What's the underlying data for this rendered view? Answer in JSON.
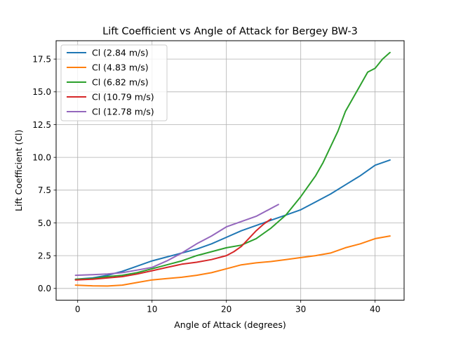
{
  "chart_data": {
    "type": "line",
    "title": "Lift Coefficient vs Angle of Attack for Bergey BW-3",
    "xlabel": "Angle of Attack (degrees)",
    "ylabel": "Lift Coefficient (Cl)",
    "xlim": [
      -2.9,
      43.9
    ],
    "ylim": [
      -0.9,
      18.9
    ],
    "xticks": [
      0,
      10,
      20,
      30,
      40
    ],
    "xtick_labels": [
      "0",
      "10",
      "20",
      "30",
      "40"
    ],
    "yticks": [
      0,
      2.5,
      5,
      7.5,
      10,
      12.5,
      15,
      17.5
    ],
    "ytick_labels": [
      "0.0",
      "2.5",
      "5.0",
      "7.5",
      "10.0",
      "12.5",
      "15.0",
      "17.5"
    ],
    "grid": true,
    "legend_position": "upper-left",
    "series": [
      {
        "name": "Cl (2.84 m/s)",
        "color": "#1f77b4",
        "x": [
          -0.3,
          2,
          4,
          6,
          8,
          10,
          12,
          14,
          16,
          18,
          20,
          22,
          24,
          26,
          28,
          30,
          32,
          34,
          36,
          38,
          40,
          42
        ],
        "y": [
          0.7,
          0.8,
          1.0,
          1.3,
          1.7,
          2.1,
          2.4,
          2.7,
          3.0,
          3.4,
          3.9,
          4.4,
          4.8,
          5.2,
          5.6,
          6.0,
          6.6,
          7.2,
          7.9,
          8.6,
          9.4,
          9.8
        ]
      },
      {
        "name": "Cl (4.83 m/s)",
        "color": "#ff7f0e",
        "x": [
          -0.3,
          2,
          4,
          6,
          8,
          10,
          12,
          14,
          16,
          18,
          20,
          22,
          24,
          26,
          28,
          30,
          32,
          34,
          36,
          38,
          40,
          42
        ],
        "y": [
          0.25,
          0.2,
          0.18,
          0.25,
          0.45,
          0.65,
          0.75,
          0.85,
          1.0,
          1.2,
          1.5,
          1.8,
          1.95,
          2.05,
          2.2,
          2.35,
          2.5,
          2.7,
          3.1,
          3.4,
          3.8,
          4.0
        ]
      },
      {
        "name": "Cl (6.82 m/s)",
        "color": "#2ca02c",
        "x": [
          -0.3,
          2,
          4,
          6,
          8,
          10,
          12,
          14,
          16,
          18,
          20,
          22,
          24,
          26,
          28,
          30,
          31,
          32,
          33,
          34,
          35,
          36,
          37,
          38,
          39,
          40,
          41,
          42
        ],
        "y": [
          0.7,
          0.75,
          0.9,
          1.0,
          1.2,
          1.5,
          1.8,
          2.1,
          2.5,
          2.8,
          3.1,
          3.3,
          3.8,
          4.6,
          5.6,
          7.0,
          7.8,
          8.6,
          9.6,
          10.8,
          12.0,
          13.5,
          14.5,
          15.5,
          16.5,
          16.8,
          17.5,
          18.0
        ]
      },
      {
        "name": "Cl (10.79 m/s)",
        "color": "#d62728",
        "x": [
          -0.3,
          2,
          4,
          6,
          8,
          10,
          12,
          14,
          16,
          18,
          20,
          21,
          22,
          23,
          24,
          25,
          26
        ],
        "y": [
          0.65,
          0.7,
          0.8,
          0.9,
          1.1,
          1.35,
          1.6,
          1.85,
          2.0,
          2.2,
          2.5,
          2.8,
          3.2,
          3.8,
          4.4,
          4.9,
          5.3
        ]
      },
      {
        "name": "Cl (12.78 m/s)",
        "color": "#9467bd",
        "x": [
          -0.3,
          2,
          4,
          6,
          8,
          10,
          12,
          14,
          16,
          18,
          20,
          22,
          24,
          26,
          27
        ],
        "y": [
          1.0,
          1.05,
          1.1,
          1.2,
          1.4,
          1.6,
          2.1,
          2.7,
          3.4,
          4.0,
          4.7,
          5.1,
          5.5,
          6.1,
          6.4
        ]
      }
    ]
  }
}
